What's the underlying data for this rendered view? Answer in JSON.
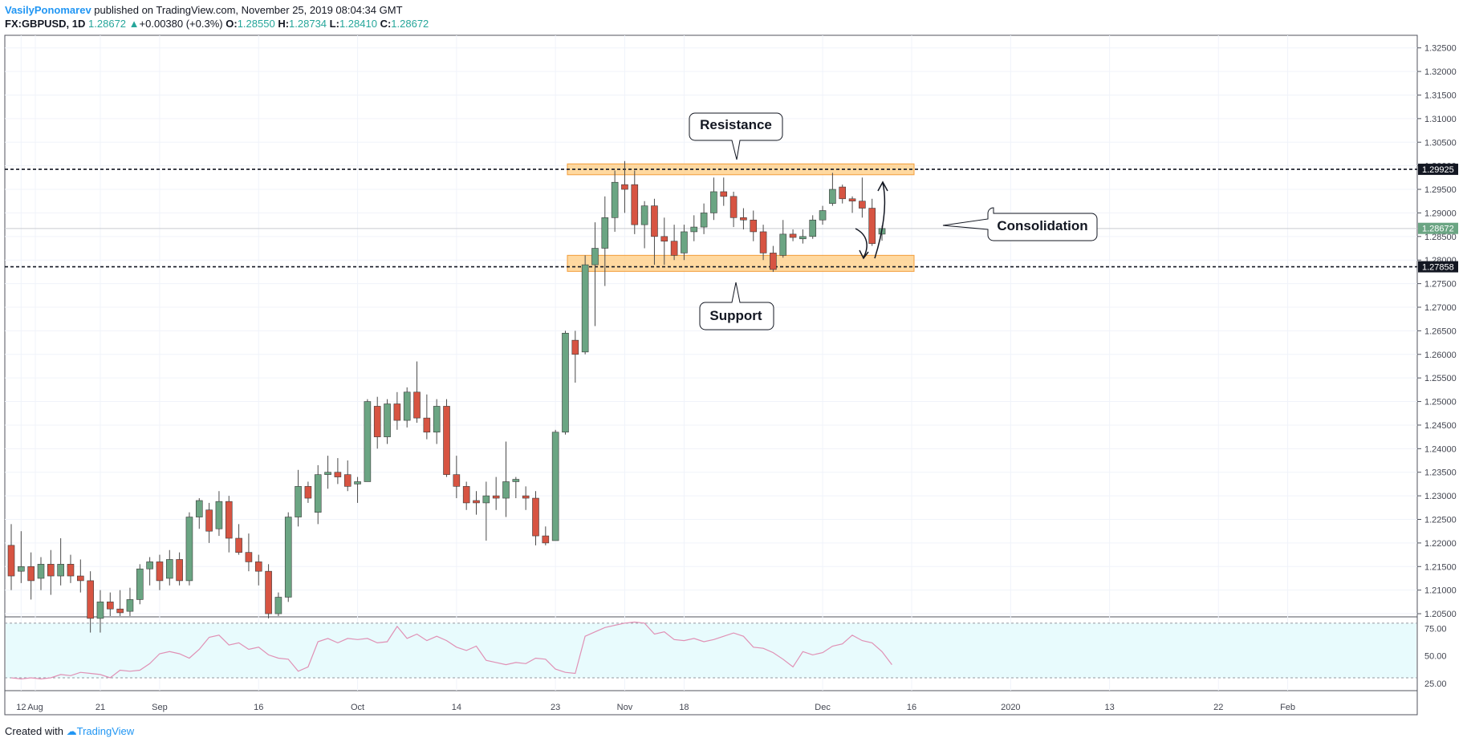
{
  "header": {
    "author": "VasilyPonomarev",
    "published": "published on TradingView.com, November 25, 2019 08:04:34 GMT",
    "symbol": "FX:GBPUSD, 1D",
    "price": "1.28672",
    "change": "+0.00380 (+0.3%)",
    "o_label": "O:",
    "o_value": "1.28550",
    "h_label": "H:",
    "h_value": "1.28734",
    "l_label": "L:",
    "l_value": "1.28410",
    "c_label": "C:",
    "c_value": "1.28672"
  },
  "footer": {
    "created": "Created with",
    "brand": "TradingView"
  },
  "annotations": {
    "resistance": "Resistance",
    "support": "Support",
    "consolidation": "Consolidation"
  },
  "price_tags": {
    "resistance": "1.29925",
    "current": "1.28672",
    "support": "1.27858"
  },
  "colors": {
    "up": "#6ba583",
    "down": "#d75442",
    "zone": "#ffcc80",
    "rsi_line": "#e091b5",
    "rsi_fill": "#e8fbfd",
    "accent": "#2196f3"
  },
  "chart_data": {
    "type": "candlestick",
    "symbol": "FX:GBPUSD",
    "timeframe": "1D",
    "ylim": [
      1.2045,
      1.3275
    ],
    "y_ticks": [
      "1.32500",
      "1.32000",
      "1.31500",
      "1.31000",
      "1.30500",
      "1.30000",
      "1.29500",
      "1.29000",
      "1.28500",
      "1.28000",
      "1.27500",
      "1.27000",
      "1.26500",
      "1.26000",
      "1.25500",
      "1.25000",
      "1.24500",
      "1.24000",
      "1.23500",
      "1.23000",
      "1.22500",
      "1.22000",
      "1.21500",
      "1.21000",
      "1.20500"
    ],
    "x_ticks": [
      "Aug",
      "12",
      "21",
      "Sep",
      "16",
      "Oct",
      "14",
      "23",
      "Nov",
      "18",
      "Dec",
      "16",
      "2020",
      "13",
      "22",
      "Feb"
    ],
    "candles": [
      {
        "o": 1.2195,
        "h": 1.224,
        "l": 1.21,
        "c": 1.213
      },
      {
        "o": 1.214,
        "h": 1.2225,
        "l": 1.2115,
        "c": 1.215
      },
      {
        "o": 1.215,
        "h": 1.218,
        "l": 1.208,
        "c": 1.212
      },
      {
        "o": 1.2125,
        "h": 1.217,
        "l": 1.21,
        "c": 1.2155
      },
      {
        "o": 1.2155,
        "h": 1.2185,
        "l": 1.209,
        "c": 1.213
      },
      {
        "o": 1.213,
        "h": 1.221,
        "l": 1.211,
        "c": 1.2155
      },
      {
        "o": 1.2155,
        "h": 1.2175,
        "l": 1.2115,
        "c": 1.213
      },
      {
        "o": 1.213,
        "h": 1.2165,
        "l": 1.2095,
        "c": 1.212
      },
      {
        "o": 1.212,
        "h": 1.214,
        "l": 1.201,
        "c": 1.204
      },
      {
        "o": 1.204,
        "h": 1.21,
        "l": 1.201,
        "c": 1.2075
      },
      {
        "o": 1.2075,
        "h": 1.2095,
        "l": 1.2045,
        "c": 1.206
      },
      {
        "o": 1.206,
        "h": 1.21,
        "l": 1.2045,
        "c": 1.2052
      },
      {
        "o": 1.2055,
        "h": 1.2105,
        "l": 1.2045,
        "c": 1.208
      },
      {
        "o": 1.208,
        "h": 1.2155,
        "l": 1.207,
        "c": 1.2145
      },
      {
        "o": 1.2145,
        "h": 1.217,
        "l": 1.211,
        "c": 1.216
      },
      {
        "o": 1.216,
        "h": 1.2175,
        "l": 1.21,
        "c": 1.212
      },
      {
        "o": 1.2125,
        "h": 1.2185,
        "l": 1.211,
        "c": 1.2165
      },
      {
        "o": 1.2165,
        "h": 1.218,
        "l": 1.211,
        "c": 1.212
      },
      {
        "o": 1.212,
        "h": 1.2265,
        "l": 1.211,
        "c": 1.2255
      },
      {
        "o": 1.2255,
        "h": 1.2295,
        "l": 1.223,
        "c": 1.229
      },
      {
        "o": 1.227,
        "h": 1.2285,
        "l": 1.22,
        "c": 1.2225
      },
      {
        "o": 1.223,
        "h": 1.231,
        "l": 1.2215,
        "c": 1.2288
      },
      {
        "o": 1.2288,
        "h": 1.23,
        "l": 1.218,
        "c": 1.221
      },
      {
        "o": 1.221,
        "h": 1.224,
        "l": 1.2175,
        "c": 1.218
      },
      {
        "o": 1.218,
        "h": 1.222,
        "l": 1.214,
        "c": 1.216
      },
      {
        "o": 1.216,
        "h": 1.2175,
        "l": 1.211,
        "c": 1.214
      },
      {
        "o": 1.214,
        "h": 1.2155,
        "l": 1.204,
        "c": 1.205
      },
      {
        "o": 1.205,
        "h": 1.2095,
        "l": 1.2045,
        "c": 1.2085
      },
      {
        "o": 1.2085,
        "h": 1.2265,
        "l": 1.2075,
        "c": 1.2255
      },
      {
        "o": 1.2255,
        "h": 1.2355,
        "l": 1.2235,
        "c": 1.232
      },
      {
        "o": 1.232,
        "h": 1.233,
        "l": 1.2285,
        "c": 1.2295
      },
      {
        "o": 1.2265,
        "h": 1.2365,
        "l": 1.224,
        "c": 1.2345
      },
      {
        "o": 1.2345,
        "h": 1.2385,
        "l": 1.2315,
        "c": 1.235
      },
      {
        "o": 1.235,
        "h": 1.238,
        "l": 1.2325,
        "c": 1.234
      },
      {
        "o": 1.2345,
        "h": 1.2375,
        "l": 1.231,
        "c": 1.232
      },
      {
        "o": 1.2325,
        "h": 1.234,
        "l": 1.2285,
        "c": 1.233
      },
      {
        "o": 1.233,
        "h": 1.2505,
        "l": 1.233,
        "c": 1.25
      },
      {
        "o": 1.249,
        "h": 1.251,
        "l": 1.24,
        "c": 1.2425
      },
      {
        "o": 1.2425,
        "h": 1.2505,
        "l": 1.241,
        "c": 1.2495
      },
      {
        "o": 1.2495,
        "h": 1.252,
        "l": 1.244,
        "c": 1.246
      },
      {
        "o": 1.246,
        "h": 1.253,
        "l": 1.2445,
        "c": 1.252
      },
      {
        "o": 1.252,
        "h": 1.2585,
        "l": 1.2455,
        "c": 1.2465
      },
      {
        "o": 1.2465,
        "h": 1.2515,
        "l": 1.242,
        "c": 1.2435
      },
      {
        "o": 1.2435,
        "h": 1.2505,
        "l": 1.241,
        "c": 1.249
      },
      {
        "o": 1.249,
        "h": 1.2505,
        "l": 1.234,
        "c": 1.2345
      },
      {
        "o": 1.2345,
        "h": 1.2385,
        "l": 1.2295,
        "c": 1.232
      },
      {
        "o": 1.232,
        "h": 1.233,
        "l": 1.227,
        "c": 1.2285
      },
      {
        "o": 1.229,
        "h": 1.231,
        "l": 1.226,
        "c": 1.2285
      },
      {
        "o": 1.2285,
        "h": 1.233,
        "l": 1.2205,
        "c": 1.23
      },
      {
        "o": 1.23,
        "h": 1.234,
        "l": 1.227,
        "c": 1.2295
      },
      {
        "o": 1.2295,
        "h": 1.2415,
        "l": 1.2255,
        "c": 1.233
      },
      {
        "o": 1.233,
        "h": 1.234,
        "l": 1.2295,
        "c": 1.2335
      },
      {
        "o": 1.23,
        "h": 1.232,
        "l": 1.227,
        "c": 1.2295
      },
      {
        "o": 1.2295,
        "h": 1.231,
        "l": 1.2195,
        "c": 1.2215
      },
      {
        "o": 1.2215,
        "h": 1.2235,
        "l": 1.2195,
        "c": 1.22
      },
      {
        "o": 1.2205,
        "h": 1.244,
        "l": 1.2205,
        "c": 1.2435
      },
      {
        "o": 1.2435,
        "h": 1.265,
        "l": 1.243,
        "c": 1.2645
      },
      {
        "o": 1.263,
        "h": 1.265,
        "l": 1.254,
        "c": 1.26
      },
      {
        "o": 1.2605,
        "h": 1.281,
        "l": 1.26,
        "c": 1.279
      },
      {
        "o": 1.279,
        "h": 1.288,
        "l": 1.266,
        "c": 1.2825
      },
      {
        "o": 1.2825,
        "h": 1.2935,
        "l": 1.2745,
        "c": 1.289
      },
      {
        "o": 1.289,
        "h": 1.299,
        "l": 1.286,
        "c": 1.2965
      },
      {
        "o": 1.296,
        "h": 1.301,
        "l": 1.29,
        "c": 1.295
      },
      {
        "o": 1.296,
        "h": 1.299,
        "l": 1.2855,
        "c": 1.2875
      },
      {
        "o": 1.2875,
        "h": 1.2925,
        "l": 1.2825,
        "c": 1.2915
      },
      {
        "o": 1.2915,
        "h": 1.293,
        "l": 1.279,
        "c": 1.285
      },
      {
        "o": 1.285,
        "h": 1.289,
        "l": 1.279,
        "c": 1.284
      },
      {
        "o": 1.284,
        "h": 1.2875,
        "l": 1.28,
        "c": 1.281
      },
      {
        "o": 1.2815,
        "h": 1.2875,
        "l": 1.28,
        "c": 1.286
      },
      {
        "o": 1.286,
        "h": 1.2895,
        "l": 1.284,
        "c": 1.287
      },
      {
        "o": 1.287,
        "h": 1.292,
        "l": 1.2855,
        "c": 1.29
      },
      {
        "o": 1.29,
        "h": 1.2975,
        "l": 1.2885,
        "c": 1.2945
      },
      {
        "o": 1.2945,
        "h": 1.2975,
        "l": 1.2915,
        "c": 1.2935
      },
      {
        "o": 1.2935,
        "h": 1.2945,
        "l": 1.287,
        "c": 1.289
      },
      {
        "o": 1.289,
        "h": 1.291,
        "l": 1.2865,
        "c": 1.2885
      },
      {
        "o": 1.2885,
        "h": 1.2905,
        "l": 1.284,
        "c": 1.286
      },
      {
        "o": 1.286,
        "h": 1.2875,
        "l": 1.28,
        "c": 1.2815
      },
      {
        "o": 1.2815,
        "h": 1.283,
        "l": 1.2775,
        "c": 1.278
      },
      {
        "o": 1.281,
        "h": 1.2885,
        "l": 1.2805,
        "c": 1.2855
      },
      {
        "o": 1.2855,
        "h": 1.2865,
        "l": 1.284,
        "c": 1.2848
      },
      {
        "o": 1.2845,
        "h": 1.2865,
        "l": 1.2835,
        "c": 1.285
      },
      {
        "o": 1.285,
        "h": 1.2895,
        "l": 1.2845,
        "c": 1.2885
      },
      {
        "o": 1.2885,
        "h": 1.2915,
        "l": 1.2875,
        "c": 1.2905
      },
      {
        "o": 1.292,
        "h": 1.2985,
        "l": 1.2915,
        "c": 1.295
      },
      {
        "o": 1.2955,
        "h": 1.296,
        "l": 1.292,
        "c": 1.293
      },
      {
        "o": 1.293,
        "h": 1.2935,
        "l": 1.29,
        "c": 1.2925
      },
      {
        "o": 1.2925,
        "h": 1.2975,
        "l": 1.289,
        "c": 1.291
      },
      {
        "o": 1.291,
        "h": 1.293,
        "l": 1.283,
        "c": 1.2835
      },
      {
        "o": 1.2855,
        "h": 1.2873,
        "l": 1.2841,
        "c": 1.2867
      }
    ],
    "horizontal_lines": [
      1.29925,
      1.27858
    ],
    "zones": [
      [
        1.2981,
        1.3004
      ],
      [
        1.2776,
        1.281
      ]
    ],
    "rsi": {
      "ylim": [
        19,
        85
      ],
      "ticks": [
        "75.00",
        "50.00",
        "25.00"
      ],
      "levels": [
        80,
        30
      ],
      "values": [
        30,
        29,
        30,
        29,
        30,
        33,
        32,
        35,
        34,
        33,
        30,
        37,
        36,
        37,
        43,
        52,
        54,
        52,
        48,
        56,
        67,
        69,
        60,
        62,
        56,
        58,
        51,
        48,
        47,
        36,
        40,
        63,
        66,
        62,
        66,
        65,
        66,
        62,
        63,
        77,
        66,
        70,
        64,
        68,
        64,
        58,
        55,
        59,
        46,
        44,
        42,
        44,
        43,
        48,
        47,
        38,
        35,
        34,
        68,
        72,
        76,
        78,
        80,
        81,
        80,
        70,
        72,
        65,
        64,
        66,
        63,
        65,
        68,
        71,
        68,
        58,
        57,
        53,
        47,
        40,
        54,
        51,
        53,
        59,
        61,
        69,
        64,
        62,
        54,
        42
      ]
    },
    "x_tick_positions": [
      0,
      1,
      9,
      15,
      25,
      35,
      45,
      55,
      62,
      68,
      82,
      91,
      101,
      111,
      122,
      129
    ]
  }
}
